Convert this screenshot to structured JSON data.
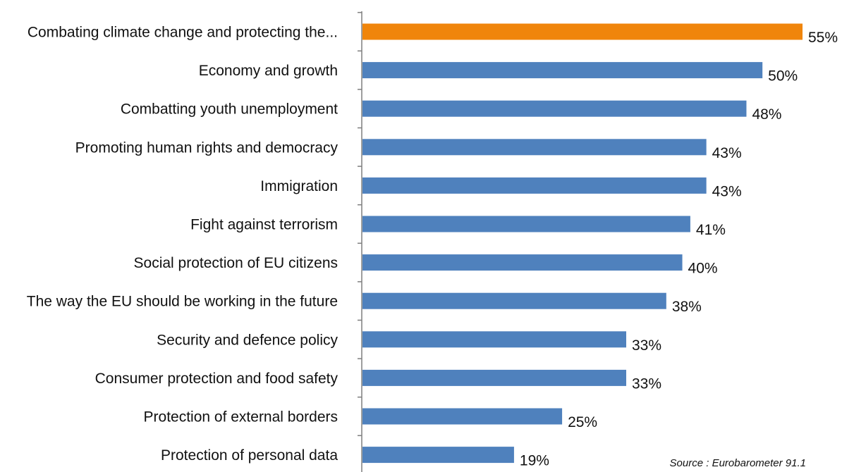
{
  "colors": {
    "bar": "#4f81bd",
    "highlight": "#f0850b",
    "axis": "#7f7f7f",
    "text": "#111111"
  },
  "chart_data": {
    "type": "bar",
    "orientation": "horizontal",
    "title": "",
    "xlabel": "",
    "ylabel": "",
    "categories": [
      "Combating climate change and protecting the...",
      "Economy and growth",
      "Combatting youth unemployment",
      "Promoting human rights and democracy",
      "Immigration",
      "Fight against terrorism",
      "Social protection of EU citizens",
      "The way the EU should be working in the future",
      "Security and defence policy",
      "Consumer protection and food safety",
      "Protection of external borders",
      "Protection of personal data"
    ],
    "values": [
      55,
      50,
      48,
      43,
      43,
      41,
      40,
      38,
      33,
      33,
      25,
      19
    ],
    "value_labels": [
      "55%",
      "50%",
      "48%",
      "43%",
      "43%",
      "41%",
      "40%",
      "38%",
      "33%",
      "33%",
      "25%",
      "19%"
    ],
    "highlight_index": 0,
    "xlim": [
      0,
      55
    ],
    "grid": false,
    "legend": "none",
    "source": "Source : Eurobarometer 91.1"
  }
}
